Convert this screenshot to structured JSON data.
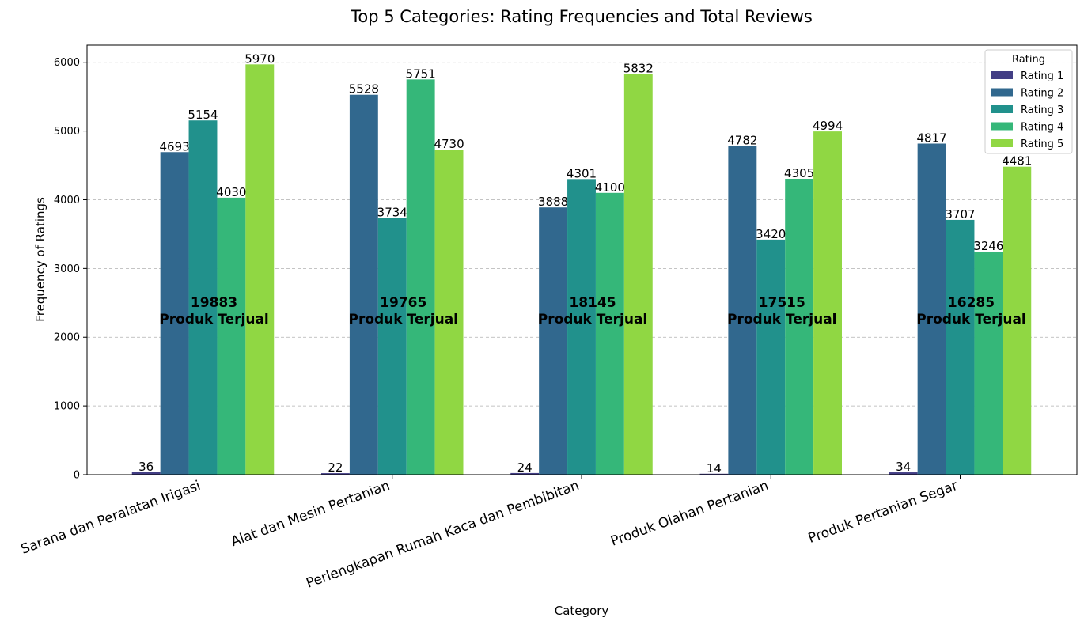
{
  "chart_data": {
    "type": "bar",
    "title": "Top 5 Categories: Rating Frequencies and Total Reviews",
    "xlabel": "Category",
    "ylabel": "Frequency of Ratings",
    "ylim": [
      0,
      6250
    ],
    "yticks": [
      0,
      1000,
      2000,
      3000,
      4000,
      5000,
      6000
    ],
    "grid": "y-dashed",
    "legend": {
      "title": "Rating",
      "placement": "top-right"
    },
    "categories": [
      "Sarana dan Peralatan Irigasi",
      "Alat dan Mesin Pertanian",
      "Perlengkapan Rumah Kaca dan Pembibitan",
      "Produk Olahan Pertanian",
      "Produk Pertanian Segar"
    ],
    "series": [
      {
        "name": "Rating 1",
        "color": "#433e85",
        "values": [
          36,
          22,
          24,
          14,
          34
        ]
      },
      {
        "name": "Rating 2",
        "color": "#31688e",
        "values": [
          4693,
          5528,
          3888,
          4782,
          4817
        ]
      },
      {
        "name": "Rating 3",
        "color": "#21918c",
        "values": [
          5154,
          3734,
          4301,
          3420,
          3707
        ]
      },
      {
        "name": "Rating 4",
        "color": "#35b779",
        "values": [
          4030,
          5751,
          4100,
          4305,
          3246
        ]
      },
      {
        "name": "Rating 5",
        "color": "#90d743",
        "values": [
          5970,
          4730,
          5832,
          4994,
          4481
        ]
      }
    ],
    "totals": [
      19883,
      19765,
      18145,
      17515,
      16285
    ],
    "totals_suffix": "Produk Terjual"
  }
}
